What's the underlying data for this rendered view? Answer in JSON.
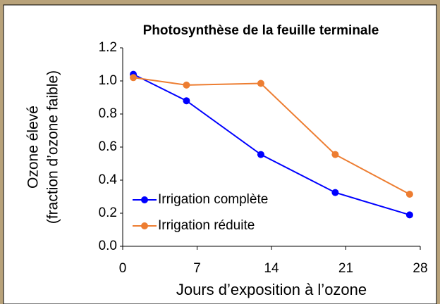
{
  "chart_data": {
    "type": "line",
    "title": "Photosynthèse de la feuille terminale",
    "x_label": "Jours d’exposition à l’ozone",
    "y_label": [
      "Ozone élevé",
      "(fraction d’ozone faible)"
    ],
    "x": [
      1,
      6,
      13,
      20,
      27
    ],
    "series": [
      {
        "name": "Irrigation complète",
        "color": "#0000ff",
        "values": [
          1.04,
          0.88,
          0.555,
          0.325,
          0.19
        ]
      },
      {
        "name": "Irrigation réduite",
        "color": "#ed7d31",
        "values": [
          1.02,
          0.975,
          0.985,
          0.555,
          0.315
        ]
      }
    ],
    "xlim": [
      0,
      28
    ],
    "xticks": [
      0,
      7,
      14,
      21,
      28
    ],
    "ylim": [
      0,
      1.2
    ],
    "yticks": [
      {
        "value": 0,
        "label": "0.0"
      },
      0.2,
      0.4,
      0.6,
      0.8,
      {
        "value": 1,
        "label": "1.0"
      },
      1.2
    ],
    "legend": "lower left",
    "grid": false
  }
}
